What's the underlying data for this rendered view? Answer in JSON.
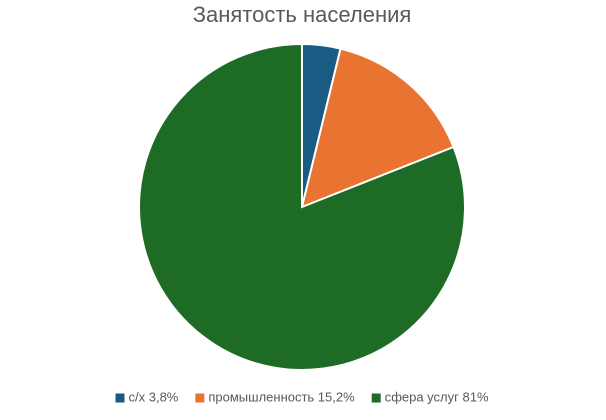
{
  "chart_data": {
    "type": "pie",
    "title": "Занятость населения",
    "categories": [
      "с/х 3,8%",
      "промышленность 15,2%",
      "сфера услуг 81%"
    ],
    "values": [
      3.8,
      15.2,
      81
    ],
    "colors": [
      "#1a5b84",
      "#e97432",
      "#1e6b26"
    ],
    "legend": "bottom"
  }
}
